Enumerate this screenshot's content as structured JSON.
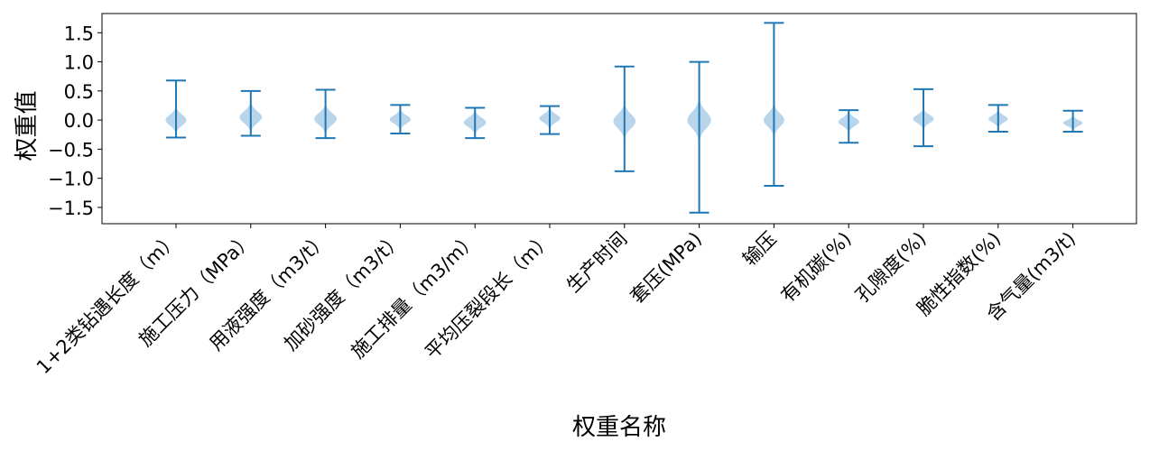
{
  "chart_data": {
    "type": "violin",
    "title": "",
    "xlabel": "权重名称",
    "ylabel": "权重值",
    "ylim": [
      -1.78,
      1.83
    ],
    "yticks": [
      1.5,
      1.0,
      0.5,
      0.0,
      -0.5,
      -1.0,
      -1.5
    ],
    "ytick_labels": [
      "1.5",
      "1.0",
      "0.5",
      "0.0",
      "−0.5",
      "−1.0",
      "−1.5"
    ],
    "grid": false,
    "colors": {
      "violin_fill": "#9ec5e3",
      "whisker": "#1f77b4",
      "axis": "#000000"
    },
    "categories": [
      "1+2类钻遇长度（m）",
      "施工压力（MPa）",
      "用液强度（m3/t）",
      "加砂强度（m3/t）",
      "施工排量（m3/m）",
      "平均压裂段长（m）",
      "生产时间",
      "套压(MPa)",
      "输压",
      "有机碳(%)",
      "孔隙度(%)",
      "脆性指数(%)",
      "含气量(m3/t)"
    ],
    "violins": [
      {
        "min": -0.3,
        "max": 0.68,
        "center": 0.0,
        "width": 0.28,
        "spread": 0.09
      },
      {
        "min": -0.27,
        "max": 0.5,
        "center": 0.05,
        "width": 0.3,
        "spread": 0.1
      },
      {
        "min": -0.31,
        "max": 0.52,
        "center": 0.02,
        "width": 0.3,
        "spread": 0.1
      },
      {
        "min": -0.23,
        "max": 0.26,
        "center": 0.01,
        "width": 0.28,
        "spread": 0.07
      },
      {
        "min": -0.31,
        "max": 0.21,
        "center": -0.04,
        "width": 0.3,
        "spread": 0.08
      },
      {
        "min": -0.24,
        "max": 0.24,
        "center": 0.03,
        "width": 0.28,
        "spread": 0.07
      },
      {
        "min": -0.88,
        "max": 0.92,
        "center": -0.02,
        "width": 0.3,
        "spread": 0.12
      },
      {
        "min": -1.59,
        "max": 1.0,
        "center": 0.0,
        "width": 0.32,
        "spread": 0.14
      },
      {
        "min": -1.13,
        "max": 1.67,
        "center": 0.0,
        "width": 0.28,
        "spread": 0.11
      },
      {
        "min": -0.39,
        "max": 0.17,
        "center": -0.03,
        "width": 0.28,
        "spread": 0.07
      },
      {
        "min": -0.45,
        "max": 0.53,
        "center": 0.02,
        "width": 0.28,
        "spread": 0.07
      },
      {
        "min": -0.2,
        "max": 0.26,
        "center": 0.02,
        "width": 0.26,
        "spread": 0.06
      },
      {
        "min": -0.2,
        "max": 0.16,
        "center": -0.05,
        "width": 0.26,
        "spread": 0.05
      }
    ]
  }
}
